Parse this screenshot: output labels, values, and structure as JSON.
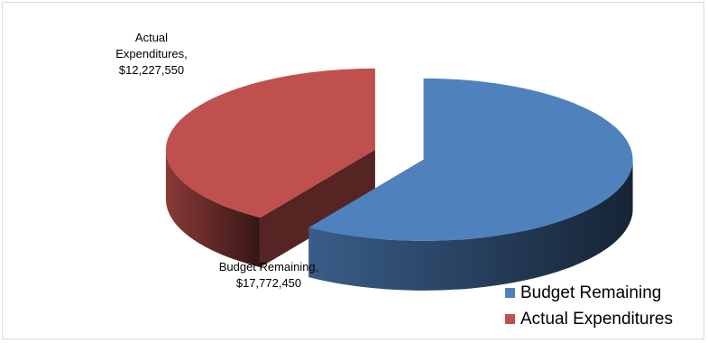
{
  "chart_data": {
    "type": "pie",
    "style": "3d-exploded",
    "title": "",
    "slices": [
      {
        "name": "Budget Remaining",
        "value": 17772450,
        "color": "#4f81bd",
        "label_lines": [
          "Budget Remaining,",
          "$17,772,450"
        ]
      },
      {
        "name": "Actual Expenditures",
        "value": 12227550,
        "color": "#c0504d",
        "label_lines": [
          "Actual",
          "Expenditures,",
          "$12,227,550"
        ]
      }
    ],
    "legend": {
      "position": "bottom-right",
      "items": [
        "Budget Remaining",
        "Actual Expenditures"
      ]
    }
  }
}
